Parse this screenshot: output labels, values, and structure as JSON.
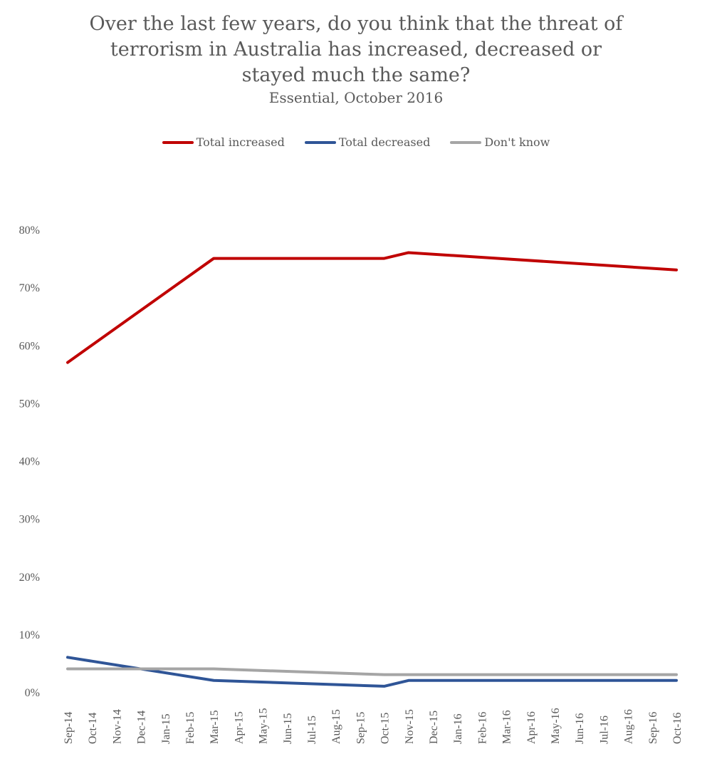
{
  "chart_data": {
    "type": "line",
    "title": "Over the last few years, do you think that the threat of terrorism in Australia has increased, decreased or stayed much the same?",
    "subtitle": "Essential, October 2016",
    "legend_position": "top",
    "grid": false,
    "ylim": [
      0,
      80
    ],
    "yticks": [
      "0%",
      "10%",
      "20%",
      "30%",
      "40%",
      "50%",
      "60%",
      "70%",
      "80%"
    ],
    "categories": [
      "Sep-14",
      "Oct-14",
      "Nov-14",
      "Dec-14",
      "Jan-15",
      "Feb-15",
      "Mar-15",
      "Apr-15",
      "May-15",
      "Jun-15",
      "Jul-15",
      "Aug-15",
      "Sep-15",
      "Oct-15",
      "Nov-15",
      "Dec-15",
      "Jan-16",
      "Feb-16",
      "Mar-16",
      "Apr-16",
      "May-16",
      "Jun-16",
      "Jul-16",
      "Aug-16",
      "Sep-16",
      "Oct-16"
    ],
    "series": [
      {
        "name": "Total increased",
        "color": "#C00000",
        "points": [
          [
            "Sep-14",
            57
          ],
          [
            "Mar-15",
            75
          ],
          [
            "Oct-15",
            75
          ],
          [
            "Nov-15",
            76
          ],
          [
            "Oct-16",
            73
          ]
        ]
      },
      {
        "name": "Total decreased",
        "color": "#2F5597",
        "points": [
          [
            "Sep-14",
            6
          ],
          [
            "Mar-15",
            2
          ],
          [
            "Oct-15",
            1
          ],
          [
            "Nov-15",
            2
          ],
          [
            "Oct-16",
            2
          ]
        ]
      },
      {
        "name": "Don't know",
        "color": "#A5A5A5",
        "points": [
          [
            "Sep-14",
            4
          ],
          [
            "Mar-15",
            4
          ],
          [
            "Oct-15",
            3
          ],
          [
            "Nov-15",
            3
          ],
          [
            "Oct-16",
            3
          ]
        ]
      }
    ]
  }
}
